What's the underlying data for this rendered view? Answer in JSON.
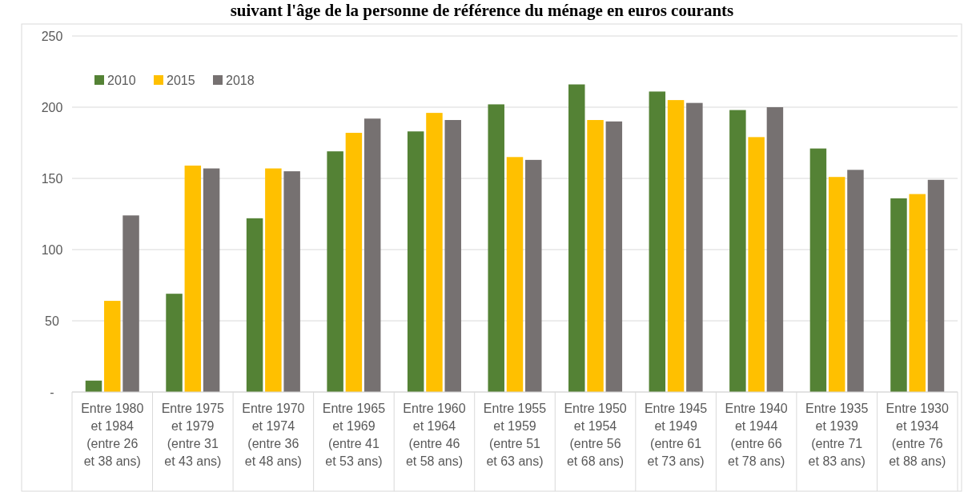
{
  "chart_data": {
    "type": "bar",
    "title": "suivant l'âge de la personne de référence du ménage en euros courants",
    "categories": [
      "Entre 1980\net 1984\n\n(entre 26\net 38 ans)",
      "Entre 1975\net 1979\n\n(entre 31\net 43 ans)",
      "Entre 1970\net 1974\n\n(entre 36\net 48 ans)",
      "Entre 1965\net 1969\n\n(entre 41\net 53 ans)",
      "Entre 1960\net 1964\n\n(entre 46\net 58 ans)",
      "Entre 1955\net 1959\n\n(entre 51\net 63 ans)",
      "Entre 1950\net 1954\n\n(entre 56\net 68 ans)",
      "Entre 1945\net 1949\n\n(entre 61\net 73 ans)",
      "Entre 1940\net 1944\n\n(entre 66\net 78 ans)",
      "Entre 1935\net 1939\n\n(entre 71\net 83 ans)",
      "Entre 1930\net 1934\n\n(entre 76\net 88 ans)"
    ],
    "series": [
      {
        "name": "2010",
        "color": "#548235",
        "values": [
          8,
          69,
          122,
          169,
          183,
          202,
          216,
          211,
          198,
          171,
          136
        ]
      },
      {
        "name": "2015",
        "color": "#ffc000",
        "values": [
          64,
          159,
          157,
          182,
          196,
          165,
          191,
          205,
          179,
          151,
          139
        ]
      },
      {
        "name": "2018",
        "color": "#767171",
        "values": [
          124,
          157,
          155,
          192,
          191,
          163,
          190,
          203,
          200,
          156,
          149
        ]
      }
    ],
    "ylim": [
      0,
      250
    ],
    "yticks": [
      {
        "value": 0,
        "label": "-"
      },
      50,
      100,
      150,
      200,
      250
    ],
    "grid": "y",
    "legend": "top left"
  }
}
